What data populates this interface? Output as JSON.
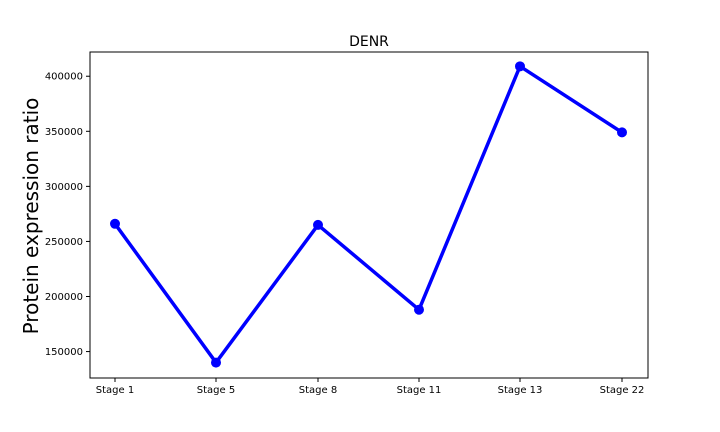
{
  "chart_data": {
    "type": "line",
    "title": "DENR",
    "xlabel": "",
    "ylabel": "Protein expression ratio",
    "categories": [
      "Stage 1",
      "Stage 5",
      "Stage 8",
      "Stage 11",
      "Stage 13",
      "Stage 22"
    ],
    "series": [
      {
        "values": [
          266000,
          140000,
          265000,
          188000,
          409000,
          349000
        ],
        "color": "#0000ff"
      }
    ],
    "yticks": [
      150000,
      200000,
      250000,
      300000,
      350000,
      400000
    ],
    "ytick_labels": [
      "150000",
      "200000",
      "250000",
      "300000",
      "350000",
      "400000"
    ],
    "ylim": [
      126000,
      422000
    ],
    "grid": false,
    "legend": "none"
  }
}
